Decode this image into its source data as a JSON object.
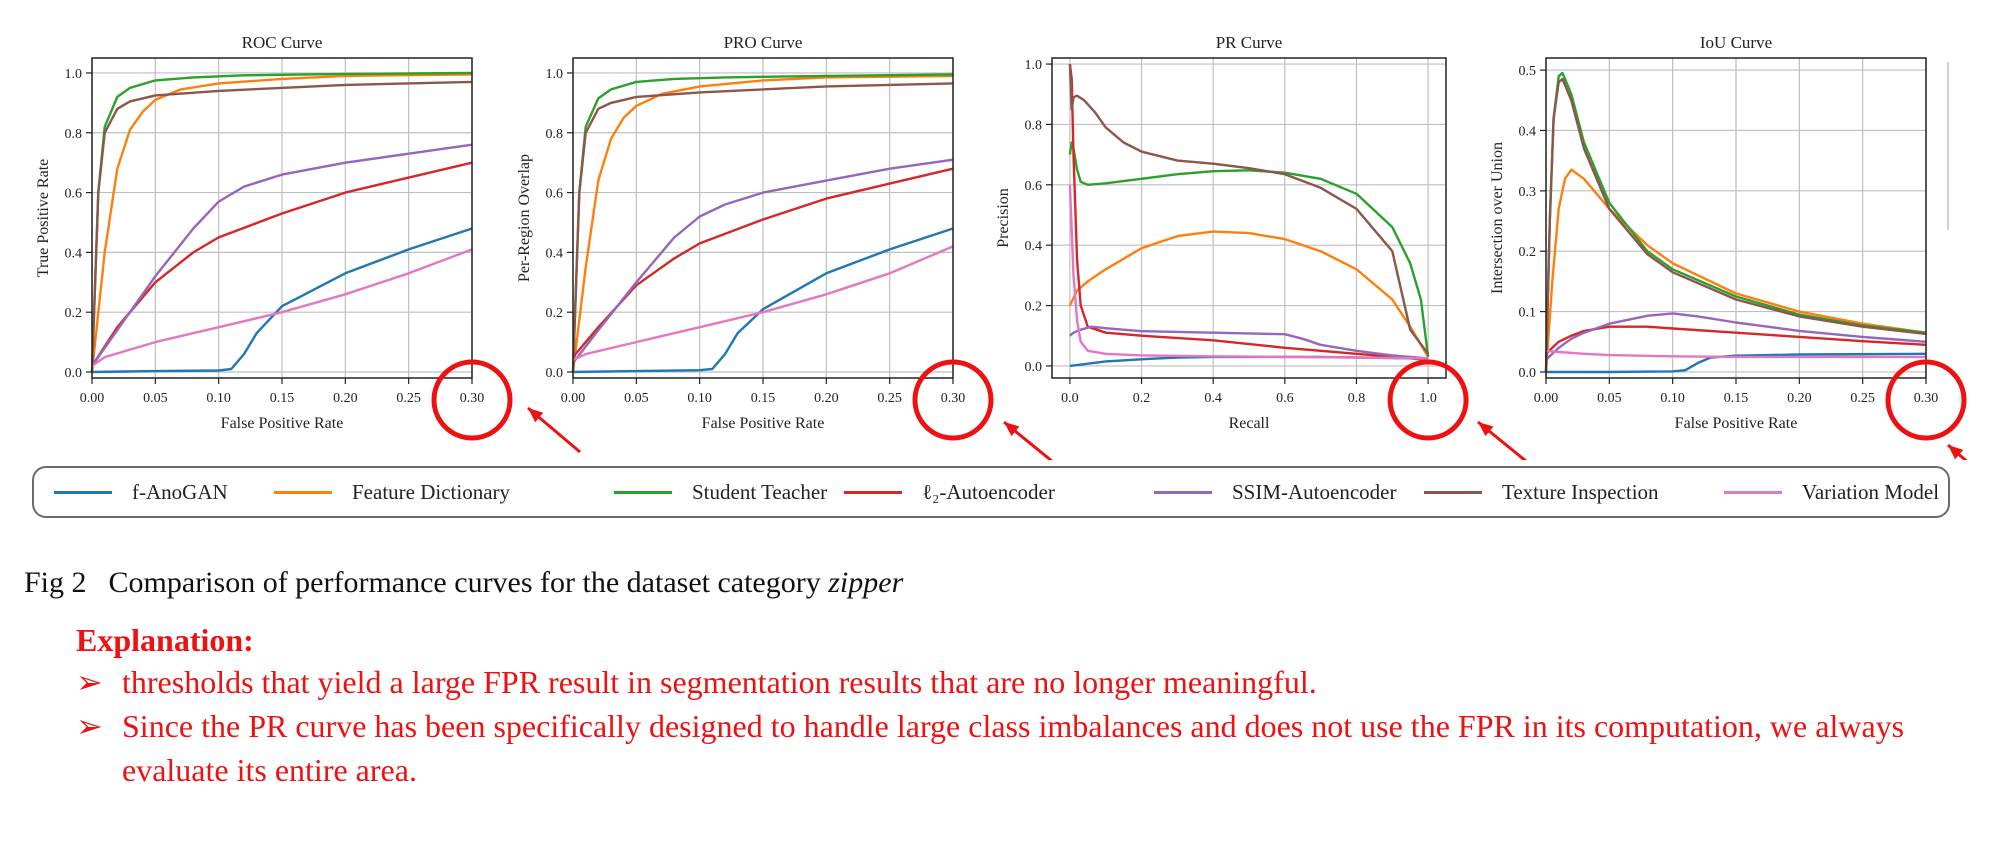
{
  "series_colors": {
    "f-AnoGAN": "#1f77b4",
    "Feature Dictionary": "#ff7f0e",
    "Student Teacher": "#2ca02c",
    "l2-Autoencoder": "#d62728",
    "SSIM-Autoencoder": "#9467bd",
    "Texture Inspection": "#8c564b",
    "Variation Model": "#e377c2"
  },
  "highlight_color": "#ee1111",
  "legend": {
    "items": [
      {
        "label": "f-AnoGAN",
        "color": "#1f77b4"
      },
      {
        "label": "Feature Dictionary",
        "color": "#ff7f0e"
      },
      {
        "label": "Student Teacher",
        "color": "#2ca02c"
      },
      {
        "label": "ℓ₂-Autoencoder",
        "color": "#d62728"
      },
      {
        "label": "SSIM-Autoencoder",
        "color": "#9467bd"
      },
      {
        "label": "Texture Inspection",
        "color": "#8c564b"
      },
      {
        "label": "Variation Model",
        "color": "#e377c2"
      }
    ]
  },
  "caption": {
    "label": "Fig 2",
    "text": "Comparison of performance curves for the dataset category",
    "category": "zipper"
  },
  "explanation": {
    "title": "Explanation:",
    "bullet_symbol": "➢",
    "bullets": [
      "thresholds that yield a large FPR result in segmentation results that are no longer meaningful.",
      "Since the PR curve has been specifically designed to handle large class imbalances and does not use the FPR in its computation, we always evaluate its entire area."
    ]
  },
  "chart_data": [
    {
      "type": "line",
      "title": "ROC Curve",
      "xlabel": "False Positive Rate",
      "ylabel": "True Positive Rate",
      "xlim": [
        0,
        0.3
      ],
      "ylim": [
        -0.02,
        1.05
      ],
      "xticks": [
        "0.00",
        "0.05",
        "0.10",
        "0.15",
        "0.20",
        "0.25",
        "0.30"
      ],
      "xtick_values": [
        0,
        0.05,
        0.1,
        0.15,
        0.2,
        0.25,
        0.3
      ],
      "yticks": [
        "0.0",
        "0.2",
        "0.4",
        "0.6",
        "0.8",
        "1.0"
      ],
      "ytick_values": [
        0,
        0.2,
        0.4,
        0.6,
        0.8,
        1.0
      ],
      "grid": true,
      "highlighted_tick": "0.30",
      "series": [
        {
          "name": "f-AnoGAN",
          "x": [
            0,
            0.05,
            0.1,
            0.11,
            0.12,
            0.13,
            0.15,
            0.2,
            0.25,
            0.3
          ],
          "y": [
            0,
            0.003,
            0.005,
            0.01,
            0.06,
            0.13,
            0.22,
            0.33,
            0.41,
            0.48
          ]
        },
        {
          "name": "Feature Dictionary",
          "x": [
            0,
            0.01,
            0.02,
            0.03,
            0.04,
            0.05,
            0.07,
            0.1,
            0.15,
            0.2,
            0.3
          ],
          "y": [
            0,
            0.4,
            0.68,
            0.81,
            0.87,
            0.91,
            0.945,
            0.965,
            0.98,
            0.99,
            0.995
          ]
        },
        {
          "name": "Student Teacher",
          "x": [
            0,
            0.005,
            0.01,
            0.02,
            0.03,
            0.05,
            0.08,
            0.12,
            0.2,
            0.3
          ],
          "y": [
            0,
            0.6,
            0.82,
            0.92,
            0.95,
            0.975,
            0.985,
            0.992,
            0.997,
            1.0
          ]
        },
        {
          "name": "l2-Autoencoder",
          "x": [
            0,
            0.02,
            0.05,
            0.08,
            0.1,
            0.15,
            0.2,
            0.25,
            0.3
          ],
          "y": [
            0.02,
            0.15,
            0.3,
            0.4,
            0.45,
            0.53,
            0.6,
            0.65,
            0.7
          ]
        },
        {
          "name": "SSIM-Autoencoder",
          "x": [
            0,
            0.02,
            0.05,
            0.08,
            0.1,
            0.12,
            0.15,
            0.2,
            0.25,
            0.3
          ],
          "y": [
            0.02,
            0.14,
            0.32,
            0.48,
            0.57,
            0.62,
            0.66,
            0.7,
            0.73,
            0.76
          ]
        },
        {
          "name": "Texture Inspection",
          "x": [
            0,
            0.005,
            0.01,
            0.02,
            0.03,
            0.05,
            0.1,
            0.2,
            0.3
          ],
          "y": [
            0,
            0.6,
            0.8,
            0.88,
            0.905,
            0.925,
            0.94,
            0.96,
            0.97
          ]
        },
        {
          "name": "Variation Model",
          "x": [
            0,
            0.01,
            0.05,
            0.1,
            0.15,
            0.2,
            0.25,
            0.3
          ],
          "y": [
            0.02,
            0.05,
            0.1,
            0.15,
            0.2,
            0.26,
            0.33,
            0.41
          ]
        }
      ]
    },
    {
      "type": "line",
      "title": "PRO Curve",
      "xlabel": "False Positive Rate",
      "ylabel": "Per-Region Overlap",
      "xlim": [
        0,
        0.3
      ],
      "ylim": [
        -0.02,
        1.05
      ],
      "xticks": [
        "0.00",
        "0.05",
        "0.10",
        "0.15",
        "0.20",
        "0.25",
        "0.30"
      ],
      "xtick_values": [
        0,
        0.05,
        0.1,
        0.15,
        0.2,
        0.25,
        0.3
      ],
      "yticks": [
        "0.0",
        "0.2",
        "0.4",
        "0.6",
        "0.8",
        "1.0"
      ],
      "ytick_values": [
        0,
        0.2,
        0.4,
        0.6,
        0.8,
        1.0
      ],
      "grid": true,
      "highlighted_tick": "0.30",
      "series": [
        {
          "name": "f-AnoGAN",
          "x": [
            0,
            0.05,
            0.1,
            0.11,
            0.12,
            0.13,
            0.15,
            0.2,
            0.25,
            0.3
          ],
          "y": [
            0,
            0.003,
            0.006,
            0.01,
            0.06,
            0.13,
            0.21,
            0.33,
            0.41,
            0.48
          ]
        },
        {
          "name": "Feature Dictionary",
          "x": [
            0,
            0.01,
            0.02,
            0.03,
            0.04,
            0.05,
            0.07,
            0.1,
            0.15,
            0.2,
            0.3
          ],
          "y": [
            0,
            0.35,
            0.64,
            0.78,
            0.85,
            0.89,
            0.93,
            0.955,
            0.975,
            0.985,
            0.99
          ]
        },
        {
          "name": "Student Teacher",
          "x": [
            0,
            0.005,
            0.01,
            0.02,
            0.03,
            0.05,
            0.08,
            0.12,
            0.2,
            0.3
          ],
          "y": [
            0,
            0.6,
            0.82,
            0.915,
            0.945,
            0.97,
            0.98,
            0.985,
            0.99,
            0.995
          ]
        },
        {
          "name": "l2-Autoencoder",
          "x": [
            0,
            0.02,
            0.05,
            0.08,
            0.1,
            0.15,
            0.2,
            0.25,
            0.3
          ],
          "y": [
            0.05,
            0.15,
            0.29,
            0.38,
            0.43,
            0.51,
            0.58,
            0.63,
            0.68
          ]
        },
        {
          "name": "SSIM-Autoencoder",
          "x": [
            0,
            0.02,
            0.05,
            0.08,
            0.1,
            0.12,
            0.15,
            0.2,
            0.25,
            0.3
          ],
          "y": [
            0.03,
            0.14,
            0.3,
            0.45,
            0.52,
            0.56,
            0.6,
            0.64,
            0.68,
            0.71
          ]
        },
        {
          "name": "Texture Inspection",
          "x": [
            0,
            0.005,
            0.01,
            0.02,
            0.03,
            0.05,
            0.1,
            0.2,
            0.3
          ],
          "y": [
            0,
            0.6,
            0.8,
            0.88,
            0.9,
            0.92,
            0.935,
            0.955,
            0.965
          ]
        },
        {
          "name": "Variation Model",
          "x": [
            0,
            0.01,
            0.05,
            0.1,
            0.15,
            0.2,
            0.25,
            0.3
          ],
          "y": [
            0.04,
            0.06,
            0.1,
            0.15,
            0.2,
            0.26,
            0.33,
            0.42
          ]
        }
      ]
    },
    {
      "type": "line",
      "title": "PR Curve",
      "xlabel": "Recall",
      "ylabel": "Precision",
      "xlim": [
        -0.05,
        1.05
      ],
      "ylim": [
        -0.04,
        1.02
      ],
      "xticks": [
        "0.0",
        "0.2",
        "0.4",
        "0.6",
        "0.8",
        "1.0"
      ],
      "xtick_values": [
        0,
        0.2,
        0.4,
        0.6,
        0.8,
        1.0
      ],
      "yticks": [
        "0.0",
        "0.2",
        "0.4",
        "0.6",
        "0.8",
        "1.0"
      ],
      "ytick_values": [
        0,
        0.2,
        0.4,
        0.6,
        0.8,
        1.0
      ],
      "grid": true,
      "highlighted_tick": "1.0",
      "series": [
        {
          "name": "f-AnoGAN",
          "x": [
            0,
            0.1,
            0.2,
            0.3,
            0.4,
            0.5,
            0.6,
            0.7,
            0.8,
            0.9,
            1.0
          ],
          "y": [
            0,
            0.015,
            0.022,
            0.028,
            0.03,
            0.03,
            0.03,
            0.03,
            0.028,
            0.026,
            0.025
          ]
        },
        {
          "name": "Feature Dictionary",
          "x": [
            0,
            0.02,
            0.05,
            0.1,
            0.2,
            0.3,
            0.4,
            0.5,
            0.6,
            0.7,
            0.8,
            0.9,
            0.95,
            1.0
          ],
          "y": [
            0.2,
            0.25,
            0.28,
            0.32,
            0.39,
            0.43,
            0.445,
            0.44,
            0.42,
            0.38,
            0.32,
            0.22,
            0.13,
            0.03
          ]
        },
        {
          "name": "Student Teacher",
          "x": [
            0,
            0.005,
            0.01,
            0.02,
            0.03,
            0.05,
            0.1,
            0.2,
            0.3,
            0.4,
            0.5,
            0.6,
            0.7,
            0.8,
            0.9,
            0.95,
            0.98,
            1.0
          ],
          "y": [
            0.7,
            0.74,
            0.72,
            0.65,
            0.61,
            0.6,
            0.605,
            0.62,
            0.635,
            0.645,
            0.648,
            0.64,
            0.62,
            0.57,
            0.46,
            0.34,
            0.22,
            0.03
          ]
        },
        {
          "name": "l2-Autoencoder",
          "x": [
            0,
            0.005,
            0.01,
            0.02,
            0.03,
            0.05,
            0.1,
            0.2,
            0.4,
            0.6,
            0.8,
            1.0
          ],
          "y": [
            1.0,
            0.95,
            0.7,
            0.35,
            0.2,
            0.13,
            0.11,
            0.1,
            0.085,
            0.06,
            0.04,
            0.02
          ]
        },
        {
          "name": "SSIM-Autoencoder",
          "x": [
            0,
            0.01,
            0.03,
            0.06,
            0.1,
            0.2,
            0.4,
            0.6,
            0.65,
            0.7,
            0.8,
            0.9,
            1.0
          ],
          "y": [
            0.1,
            0.11,
            0.12,
            0.13,
            0.125,
            0.115,
            0.11,
            0.105,
            0.09,
            0.07,
            0.05,
            0.035,
            0.025
          ]
        },
        {
          "name": "Texture Inspection",
          "x": [
            0,
            0.005,
            0.01,
            0.02,
            0.04,
            0.07,
            0.1,
            0.15,
            0.2,
            0.3,
            0.4,
            0.5,
            0.6,
            0.7,
            0.8,
            0.9,
            0.95,
            1.0
          ],
          "y": [
            1.0,
            0.85,
            0.89,
            0.895,
            0.88,
            0.84,
            0.79,
            0.74,
            0.71,
            0.68,
            0.67,
            0.655,
            0.635,
            0.59,
            0.52,
            0.38,
            0.12,
            0.04
          ]
        },
        {
          "name": "Variation Model",
          "x": [
            0,
            0.005,
            0.01,
            0.02,
            0.03,
            0.05,
            0.1,
            0.2,
            0.4,
            0.6,
            0.8,
            1.0
          ],
          "y": [
            0.6,
            0.45,
            0.3,
            0.15,
            0.08,
            0.05,
            0.04,
            0.035,
            0.032,
            0.03,
            0.028,
            0.025
          ]
        }
      ]
    },
    {
      "type": "line",
      "title": "IoU Curve",
      "xlabel": "False Positive Rate",
      "ylabel": "Intersection over Union",
      "xlim": [
        0,
        0.3
      ],
      "ylim": [
        -0.01,
        0.52
      ],
      "xticks": [
        "0.00",
        "0.05",
        "0.10",
        "0.15",
        "0.20",
        "0.25",
        "0.30"
      ],
      "xtick_values": [
        0,
        0.05,
        0.1,
        0.15,
        0.2,
        0.25,
        0.3
      ],
      "yticks": [
        "0.0",
        "0.1",
        "0.2",
        "0.3",
        "0.4",
        "0.5"
      ],
      "ytick_values": [
        0,
        0.1,
        0.2,
        0.3,
        0.4,
        0.5
      ],
      "grid": true,
      "highlighted_tick": "0.30",
      "series": [
        {
          "name": "f-AnoGAN",
          "x": [
            0,
            0.05,
            0.1,
            0.11,
            0.12,
            0.13,
            0.15,
            0.2,
            0.3
          ],
          "y": [
            0,
            0.0,
            0.001,
            0.003,
            0.015,
            0.024,
            0.027,
            0.029,
            0.03
          ]
        },
        {
          "name": "Feature Dictionary",
          "x": [
            0,
            0.005,
            0.01,
            0.015,
            0.02,
            0.03,
            0.05,
            0.08,
            0.1,
            0.15,
            0.2,
            0.25,
            0.3
          ],
          "y": [
            0,
            0.15,
            0.27,
            0.32,
            0.335,
            0.32,
            0.27,
            0.21,
            0.18,
            0.13,
            0.1,
            0.08,
            0.065
          ]
        },
        {
          "name": "Student Teacher",
          "x": [
            0,
            0.003,
            0.006,
            0.01,
            0.013,
            0.02,
            0.03,
            0.05,
            0.08,
            0.1,
            0.15,
            0.2,
            0.25,
            0.3
          ],
          "y": [
            0,
            0.25,
            0.42,
            0.49,
            0.495,
            0.46,
            0.38,
            0.28,
            0.2,
            0.17,
            0.125,
            0.095,
            0.077,
            0.065
          ]
        },
        {
          "name": "l2-Autoencoder",
          "x": [
            0,
            0.01,
            0.02,
            0.03,
            0.05,
            0.08,
            0.1,
            0.15,
            0.2,
            0.25,
            0.3
          ],
          "y": [
            0.03,
            0.05,
            0.06,
            0.068,
            0.075,
            0.075,
            0.072,
            0.065,
            0.058,
            0.051,
            0.045
          ]
        },
        {
          "name": "SSIM-Autoencoder",
          "x": [
            0,
            0.01,
            0.02,
            0.03,
            0.05,
            0.08,
            0.1,
            0.12,
            0.15,
            0.2,
            0.25,
            0.3
          ],
          "y": [
            0.02,
            0.04,
            0.055,
            0.065,
            0.08,
            0.093,
            0.097,
            0.092,
            0.082,
            0.068,
            0.058,
            0.05
          ]
        },
        {
          "name": "Texture Inspection",
          "x": [
            0,
            0.003,
            0.006,
            0.01,
            0.013,
            0.02,
            0.03,
            0.05,
            0.08,
            0.1,
            0.15,
            0.2,
            0.25,
            0.3
          ],
          "y": [
            0,
            0.25,
            0.42,
            0.48,
            0.485,
            0.45,
            0.37,
            0.27,
            0.195,
            0.165,
            0.12,
            0.092,
            0.075,
            0.063
          ]
        },
        {
          "name": "Variation Model",
          "x": [
            0,
            0.01,
            0.03,
            0.05,
            0.1,
            0.15,
            0.2,
            0.25,
            0.3
          ],
          "y": [
            0.035,
            0.033,
            0.03,
            0.028,
            0.026,
            0.025,
            0.025,
            0.025,
            0.025
          ]
        }
      ]
    }
  ]
}
